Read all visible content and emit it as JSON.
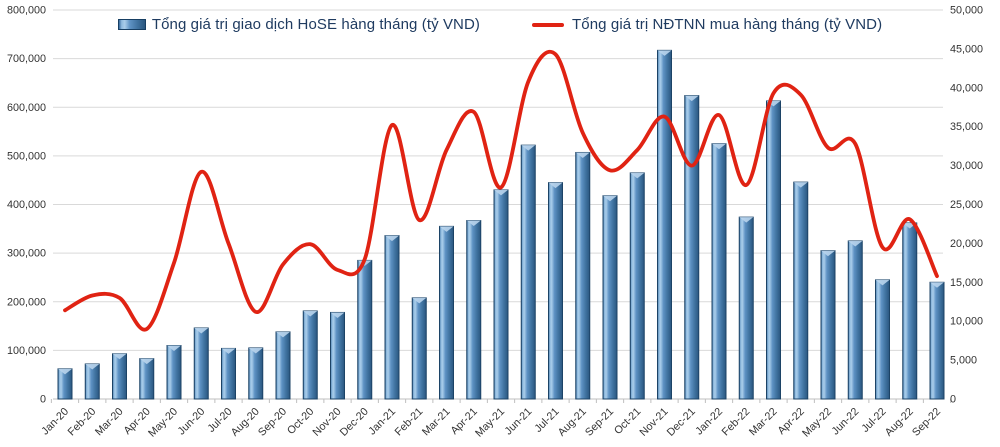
{
  "legend": {
    "bar_label": "Tổng giá trị giao dịch HoSE hàng tháng (tỷ VND)",
    "line_label": "Tổng giá trị NĐTNN mua hàng tháng (tỷ VND)"
  },
  "colors": {
    "bar_fill": "#4a7eb5",
    "bar_highlight": "#a9cdea",
    "bar_outline": "#173f63",
    "line": "#e02313",
    "gridline": "#d9d9d9",
    "axis_line": "#bfbfbf",
    "axis_text": "#333333",
    "legend_text": "#1f3b60",
    "background": "#ffffff"
  },
  "chart_data": {
    "type": "combo",
    "subtype": [
      "bar",
      "line"
    ],
    "title": "",
    "grid": true,
    "legend_position": "top",
    "categories": [
      "Jan-20",
      "Feb-20",
      "Mar-20",
      "Apr-20",
      "May-20",
      "Jun-20",
      "Jul-20",
      "Aug-20",
      "Sep-20",
      "Oct-20",
      "Nov-20",
      "Dec-20",
      "Jan-21",
      "Feb-21",
      "Mar-21",
      "Apr-21",
      "May-21",
      "Jun-21",
      "Jul-21",
      "Aug-21",
      "Sep-21",
      "Oct-21",
      "Nov-21",
      "Dec-21",
      "Jan-22",
      "Feb-22",
      "Mar-22",
      "Apr-22",
      "May-22",
      "Jun-22",
      "Jul-22",
      "Aug-22",
      "Sep-22"
    ],
    "series": [
      {
        "name": "Tổng giá trị giao dịch HoSE hàng tháng (tỷ VND)",
        "type": "bar",
        "axis": "left",
        "color": "#4a7eb5",
        "outline_color": "#1c4366",
        "values": [
          62000,
          72000,
          93000,
          83000,
          110000,
          146000,
          104000,
          105000,
          138000,
          181000,
          178000,
          285000,
          336000,
          208000,
          355000,
          367000,
          430000,
          522000,
          445000,
          507000,
          418000,
          465000,
          717000,
          624000,
          525000,
          374000,
          613000,
          446000,
          305000,
          325000,
          245000,
          362000,
          240000
        ]
      },
      {
        "name": "Tổng giá trị NĐTNN mua hàng tháng (tỷ VND)",
        "type": "line",
        "axis": "right",
        "color": "#e02313",
        "smooth": true,
        "values": [
          11400,
          13300,
          13000,
          9000,
          17500,
          29200,
          20000,
          11200,
          17300,
          19900,
          16600,
          18000,
          35200,
          23000,
          32000,
          36900,
          27200,
          40800,
          44300,
          34200,
          29400,
          32000,
          36300,
          30000,
          36500,
          27500,
          39300,
          39100,
          32300,
          32800,
          19500,
          23100,
          15800
        ]
      }
    ],
    "left_axis": {
      "min": 0,
      "max": 800000,
      "step": 100000
    },
    "right_axis": {
      "min": 0,
      "max": 50000,
      "step": 5000
    }
  }
}
